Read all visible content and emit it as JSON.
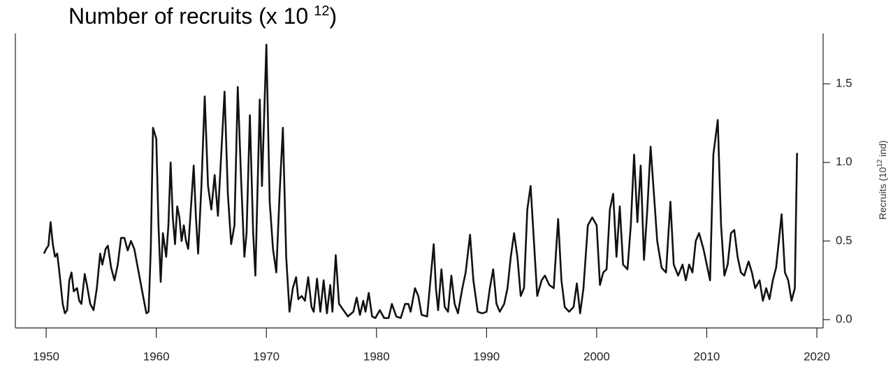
{
  "chart_data": {
    "type": "line",
    "title": {
      "text": "Number of recruits (x 10",
      "superscript": "12",
      "suffix": ")"
    },
    "y_label": {
      "text": "Recruits (10",
      "superscript": "12",
      "suffix": " ind)"
    },
    "color": "#111111",
    "xlim": [
      1947.2,
      2020.57
    ],
    "ylim": [
      -0.053,
      1.82
    ],
    "xticks": [
      1950,
      1960,
      1970,
      1980,
      1990,
      2000,
      2010,
      2020
    ],
    "yticks": [
      {
        "value": 0,
        "label": "0.0"
      },
      {
        "value": 0.5,
        "label": "0.5"
      },
      {
        "value": 1,
        "label": "1.0"
      },
      {
        "value": 1.5,
        "label": "1.5"
      }
    ],
    "x": [
      1949.8,
      1950.0,
      1950.2,
      1950.4,
      1950.6,
      1950.8,
      1951.0,
      1951.2,
      1951.5,
      1951.7,
      1951.9,
      1952.1,
      1952.3,
      1952.5,
      1952.8,
      1953.0,
      1953.2,
      1953.5,
      1953.7,
      1954.0,
      1954.3,
      1954.6,
      1954.9,
      1955.1,
      1955.4,
      1955.6,
      1955.9,
      1956.2,
      1956.5,
      1956.8,
      1957.1,
      1957.4,
      1957.7,
      1958.0,
      1958.4,
      1958.8,
      1959.1,
      1959.3,
      1959.5,
      1959.7,
      1960.0,
      1960.2,
      1960.4,
      1960.6,
      1960.9,
      1961.1,
      1961.3,
      1961.5,
      1961.7,
      1961.9,
      1962.1,
      1962.3,
      1962.5,
      1962.7,
      1962.9,
      1963.4,
      1963.6,
      1963.8,
      1964.1,
      1964.4,
      1964.7,
      1965.0,
      1965.3,
      1965.6,
      1966.2,
      1966.5,
      1966.8,
      1967.1,
      1967.4,
      1967.7,
      1968.0,
      1968.2,
      1968.5,
      1968.8,
      1969.0,
      1969.4,
      1969.6,
      1970.0,
      1970.3,
      1970.6,
      1970.9,
      1971.2,
      1971.5,
      1971.8,
      1972.1,
      1972.4,
      1972.7,
      1972.9,
      1973.2,
      1973.5,
      1973.8,
      1974.1,
      1974.3,
      1974.6,
      1974.9,
      1975.2,
      1975.5,
      1975.8,
      1976.0,
      1976.3,
      1976.6,
      1977.0,
      1977.4,
      1977.9,
      1978.2,
      1978.5,
      1978.8,
      1979.0,
      1979.3,
      1979.6,
      1979.9,
      1980.3,
      1980.7,
      1981.1,
      1981.4,
      1981.8,
      1982.2,
      1982.6,
      1982.9,
      1983.1,
      1983.5,
      1983.8,
      1984.1,
      1984.6,
      1985.2,
      1985.4,
      1985.6,
      1985.9,
      1986.2,
      1986.5,
      1986.8,
      1987.1,
      1987.4,
      1987.8,
      1988.1,
      1988.5,
      1988.8,
      1989.2,
      1989.6,
      1990.0,
      1990.3,
      1990.6,
      1990.9,
      1991.2,
      1991.6,
      1991.9,
      1992.2,
      1992.5,
      1992.8,
      1993.1,
      1993.4,
      1993.7,
      1994.0,
      1994.3,
      1994.6,
      1995.0,
      1995.3,
      1995.7,
      1996.1,
      1996.5,
      1996.8,
      1997.1,
      1997.5,
      1997.9,
      1998.2,
      1998.5,
      1998.8,
      1999.2,
      1999.6,
      2000.0,
      2000.3,
      2000.6,
      2000.9,
      2001.2,
      2001.5,
      2001.8,
      2002.1,
      2002.4,
      2002.8,
      2003.1,
      2003.4,
      2003.7,
      2004.0,
      2004.3,
      2004.6,
      2004.9,
      2005.2,
      2005.5,
      2005.9,
      2006.3,
      2006.7,
      2007.0,
      2007.4,
      2007.8,
      2008.1,
      2008.4,
      2008.7,
      2009.0,
      2009.3,
      2009.7,
      2010.0,
      2010.3,
      2010.6,
      2011.0,
      2011.3,
      2011.6,
      2011.9,
      2012.2,
      2012.5,
      2012.8,
      2013.1,
      2013.4,
      2013.8,
      2014.1,
      2014.4,
      2014.8,
      2015.1,
      2015.4,
      2015.7,
      2016.0,
      2016.3,
      2016.8,
      2017.1,
      2017.4,
      2017.7,
      2018.0,
      2018.2
    ],
    "values": [
      0.42,
      0.45,
      0.47,
      0.62,
      0.48,
      0.4,
      0.42,
      0.3,
      0.1,
      0.04,
      0.06,
      0.25,
      0.3,
      0.18,
      0.2,
      0.12,
      0.1,
      0.29,
      0.22,
      0.1,
      0.06,
      0.2,
      0.42,
      0.35,
      0.45,
      0.47,
      0.33,
      0.25,
      0.35,
      0.52,
      0.52,
      0.44,
      0.5,
      0.45,
      0.3,
      0.15,
      0.04,
      0.05,
      0.45,
      1.22,
      1.15,
      0.6,
      0.24,
      0.55,
      0.4,
      0.6,
      1.0,
      0.65,
      0.48,
      0.72,
      0.65,
      0.5,
      0.6,
      0.5,
      0.45,
      0.98,
      0.65,
      0.42,
      0.85,
      1.42,
      0.85,
      0.7,
      0.92,
      0.66,
      1.45,
      0.8,
      0.48,
      0.6,
      1.48,
      0.9,
      0.4,
      0.55,
      1.3,
      0.55,
      0.28,
      1.4,
      0.85,
      1.75,
      0.75,
      0.45,
      0.3,
      0.8,
      1.22,
      0.4,
      0.05,
      0.2,
      0.27,
      0.13,
      0.15,
      0.12,
      0.27,
      0.08,
      0.05,
      0.26,
      0.05,
      0.25,
      0.04,
      0.22,
      0.05,
      0.41,
      0.1,
      0.06,
      0.02,
      0.05,
      0.14,
      0.03,
      0.12,
      0.05,
      0.17,
      0.02,
      0.01,
      0.06,
      0.01,
      0.01,
      0.1,
      0.02,
      0.01,
      0.1,
      0.1,
      0.05,
      0.2,
      0.15,
      0.03,
      0.02,
      0.48,
      0.2,
      0.06,
      0.32,
      0.08,
      0.05,
      0.28,
      0.1,
      0.04,
      0.2,
      0.3,
      0.54,
      0.25,
      0.05,
      0.04,
      0.05,
      0.2,
      0.32,
      0.1,
      0.05,
      0.1,
      0.2,
      0.4,
      0.55,
      0.4,
      0.15,
      0.2,
      0.7,
      0.85,
      0.5,
      0.15,
      0.25,
      0.28,
      0.22,
      0.2,
      0.64,
      0.25,
      0.08,
      0.05,
      0.08,
      0.23,
      0.04,
      0.2,
      0.6,
      0.65,
      0.6,
      0.22,
      0.3,
      0.32,
      0.7,
      0.8,
      0.4,
      0.72,
      0.35,
      0.32,
      0.6,
      1.05,
      0.62,
      0.98,
      0.38,
      0.7,
      1.1,
      0.8,
      0.5,
      0.33,
      0.3,
      0.75,
      0.35,
      0.28,
      0.35,
      0.25,
      0.35,
      0.3,
      0.5,
      0.55,
      0.45,
      0.35,
      0.25,
      1.05,
      1.27,
      0.6,
      0.28,
      0.35,
      0.55,
      0.57,
      0.4,
      0.3,
      0.28,
      0.37,
      0.3,
      0.2,
      0.25,
      0.12,
      0.2,
      0.13,
      0.25,
      0.33,
      0.67,
      0.3,
      0.25,
      0.12,
      0.2,
      1.06
    ]
  }
}
